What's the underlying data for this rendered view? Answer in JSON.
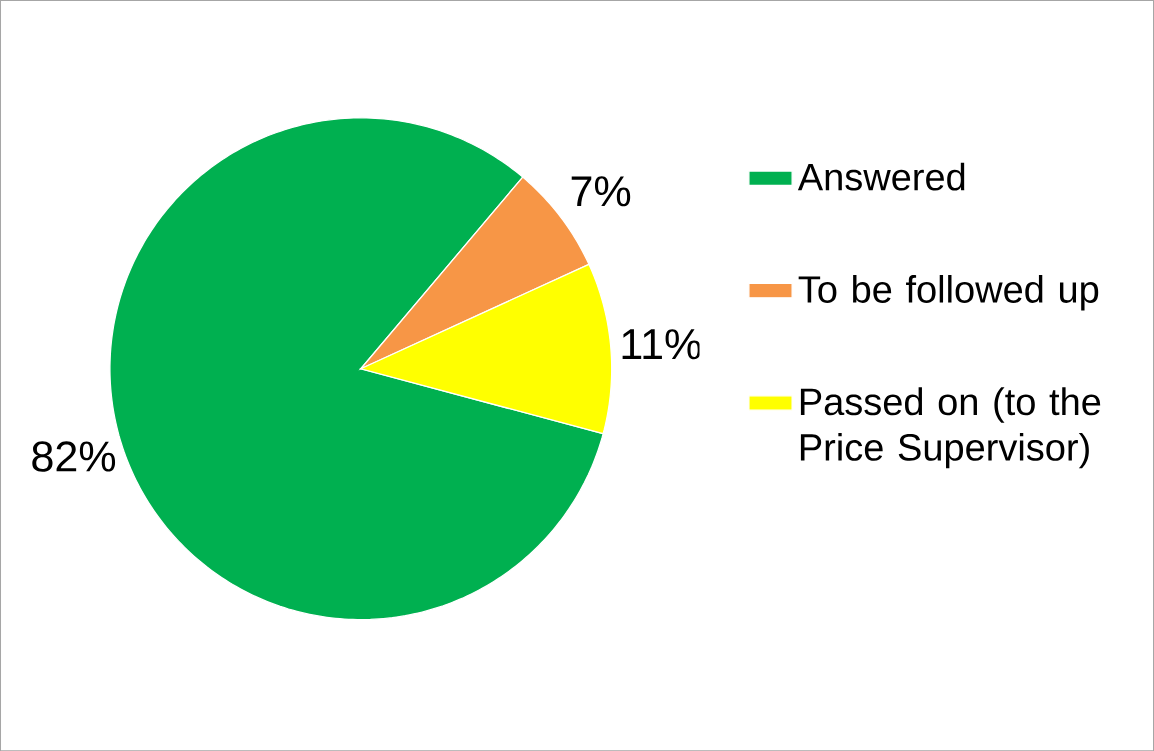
{
  "chart_data": {
    "type": "pie",
    "categories": [
      "Answered",
      "To be followed up",
      "Passed on (to the Price Supervisor)"
    ],
    "values": [
      82,
      7,
      11
    ],
    "colors": [
      "#00b050",
      "#f79646",
      "#ffff00"
    ],
    "value_labels": [
      "82%",
      "7%",
      "11%"
    ],
    "legend": "right"
  }
}
